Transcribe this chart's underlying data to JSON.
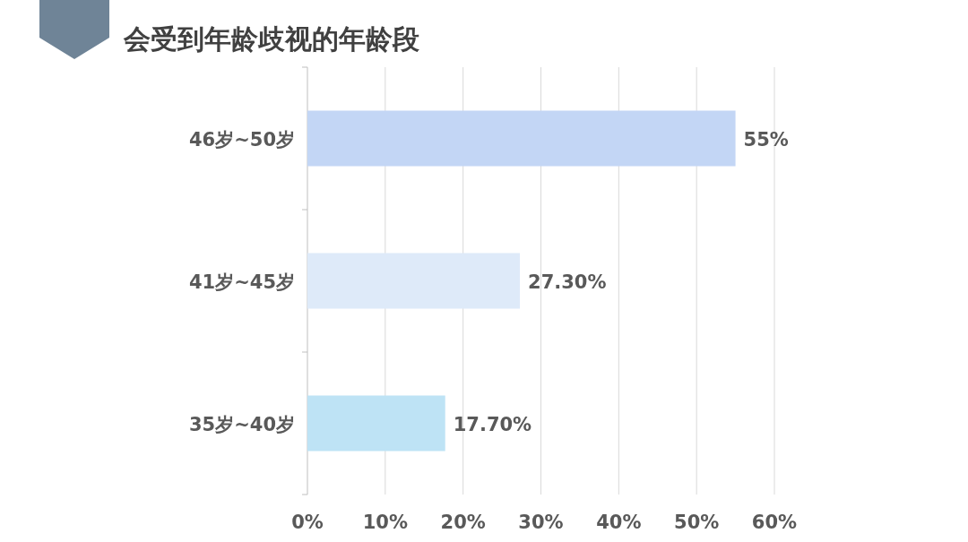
{
  "chart_data": {
    "type": "bar",
    "orientation": "horizontal",
    "title": "会受到年龄歧视的年龄段",
    "categories": [
      "46岁~50岁",
      "41岁~45岁",
      "35岁~40岁"
    ],
    "values": [
      55,
      27.3,
      17.7
    ],
    "colors": [
      "#c3d6f5",
      "#deeaf9",
      "#bee3f5"
    ],
    "value_labels": [
      "55%",
      "27.30%",
      "17.70%"
    ],
    "xlim": [
      0,
      60
    ],
    "xticks": [
      {
        "value": 0,
        "label": "0%"
      },
      {
        "value": 10,
        "label": "10%"
      },
      {
        "value": 20,
        "label": "20%"
      },
      {
        "value": 30,
        "label": "30%"
      },
      {
        "value": 40,
        "label": "40%"
      },
      {
        "value": 50,
        "label": "50%"
      },
      {
        "value": 60,
        "label": "60%"
      }
    ],
    "grid": "x"
  }
}
